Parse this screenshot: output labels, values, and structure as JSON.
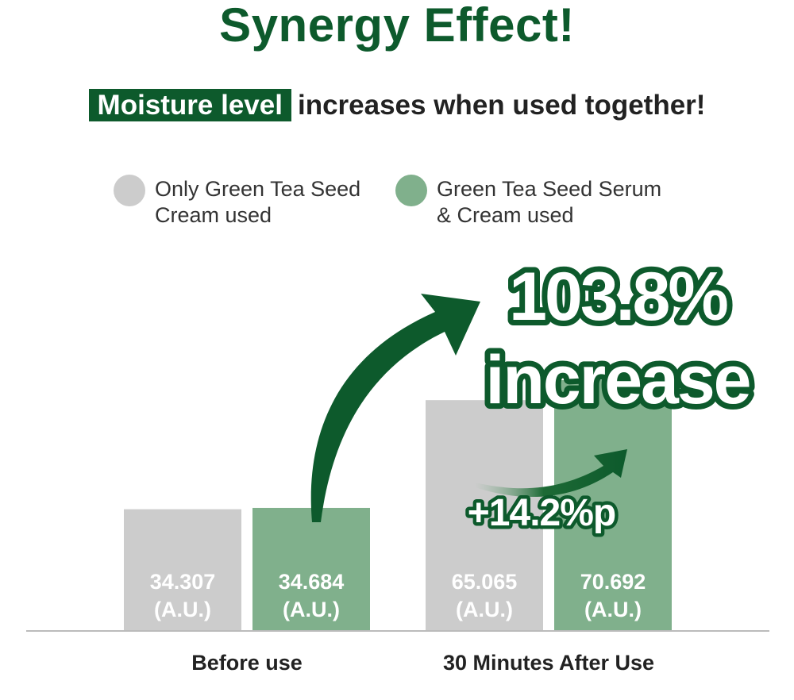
{
  "header": {
    "title": "Synergy Effect!",
    "subtitle_highlight": "Moisture level",
    "subtitle_rest": "increases when used together!"
  },
  "colors": {
    "brand": "#0d5a2c",
    "series_a": "#cccccc",
    "series_b": "#80b08c",
    "axis": "#bbbbbb"
  },
  "chart_data": {
    "type": "bar",
    "categories": [
      "Before use",
      "30 Minutes After Use"
    ],
    "series": [
      {
        "name": "Only Green Tea Seed Cream used",
        "values": [
          34.307,
          65.065
        ]
      },
      {
        "name": "Green Tea Seed Serum & Cream used",
        "values": [
          34.684,
          70.692
        ]
      }
    ],
    "value_labels": [
      [
        "34.307",
        "65.065"
      ],
      [
        "34.684",
        "70.692"
      ]
    ],
    "unit_label": "(A.U.)",
    "annotations": {
      "main_increase_value": "103.8%",
      "main_increase_word": "increase",
      "point_difference": "+14.2%p"
    },
    "legend": "top"
  }
}
